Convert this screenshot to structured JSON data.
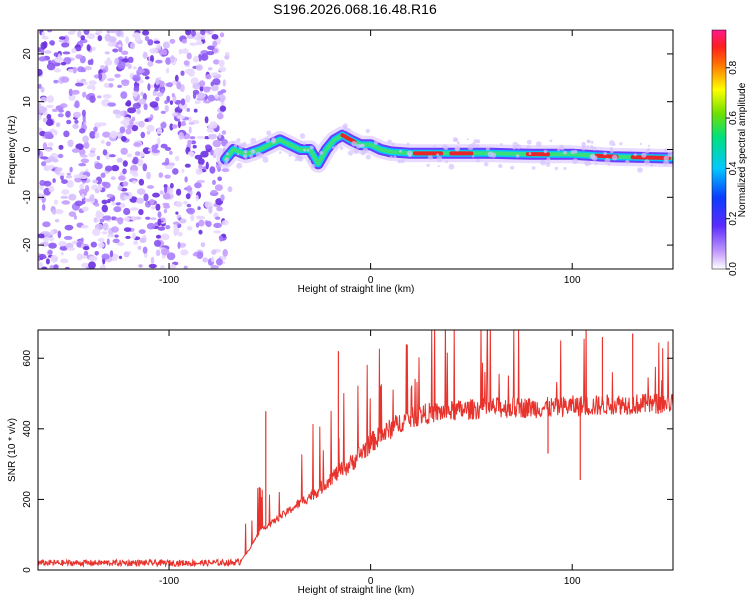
{
  "title": "S196.2026.068.16.48.R16",
  "chart_data": [
    {
      "type": "heatmap",
      "name": "spectrogram",
      "xlabel": "Height of straight line (km)",
      "ylabel": "Frequency (Hz)",
      "xlim": [
        -165,
        150
      ],
      "ylim": [
        -25,
        25
      ],
      "xticks": [
        -100,
        0,
        100
      ],
      "xtick_labels": [
        "-100",
        "0",
        "100"
      ],
      "yticks": [
        -20,
        -10,
        0,
        10,
        20
      ],
      "ytick_labels": [
        "-20",
        "-10",
        "0",
        "10",
        "20"
      ],
      "noise_region_x": [
        -165,
        -72
      ],
      "signal_track": {
        "x": [
          -72,
          -68,
          -62,
          -55,
          -50,
          -45,
          -40,
          -35,
          -30,
          -26,
          -22,
          -18,
          -14,
          -10,
          -5,
          0,
          5,
          10,
          20,
          40,
          60,
          80,
          100,
          120,
          150
        ],
        "y": [
          -2,
          0,
          -1,
          0,
          1,
          2,
          1,
          0,
          0,
          -3,
          0,
          2,
          3,
          2,
          1,
          1,
          0,
          -0.5,
          -0.8,
          -0.8,
          -0.8,
          -1,
          -1,
          -1.5,
          -1.8
        ]
      },
      "colorbar": {
        "label": "Normalized spectral amplitude",
        "range": [
          0,
          0.95
        ],
        "ticks": [
          0,
          0.2,
          0.4,
          0.6,
          0.8
        ],
        "tick_labels": [
          "0.0",
          "0.2",
          "0.4",
          "0.6",
          "0.8"
        ]
      }
    },
    {
      "type": "line",
      "name": "snr",
      "xlabel": "Height of straight line (km)",
      "ylabel": "SNR (10 * v/v)",
      "xlim": [
        -165,
        150
      ],
      "ylim": [
        0,
        680
      ],
      "xticks": [
        -100,
        0,
        100
      ],
      "xtick_labels": [
        "-100",
        "0",
        "100"
      ],
      "yticks": [
        0,
        200,
        400,
        600
      ],
      "ytick_labels": [
        "0",
        "200",
        "400",
        "600"
      ],
      "color": "#e8322c",
      "series": [
        {
          "name": "SNR",
          "x": [
            -165,
            -140,
            -110,
            -80,
            -65,
            -60,
            -55,
            -50,
            -45,
            -40,
            -35,
            -30,
            -25,
            -20,
            -15,
            -10,
            -5,
            0,
            5,
            10,
            15,
            20,
            25,
            30,
            40,
            50,
            60,
            70,
            80,
            90,
            100,
            110,
            120,
            130,
            140,
            150
          ],
          "y": [
            20,
            20,
            20,
            20,
            22,
            60,
            110,
            130,
            150,
            170,
            190,
            210,
            230,
            260,
            280,
            300,
            330,
            360,
            380,
            400,
            420,
            430,
            440,
            445,
            450,
            455,
            460,
            460,
            460,
            460,
            465,
            465,
            470,
            470,
            470,
            475
          ]
        }
      ],
      "spikes": [
        {
          "x": -52,
          "y": 450
        },
        {
          "x": -16,
          "y": 620
        },
        {
          "x": 88,
          "y": 330
        },
        {
          "x": 104,
          "y": 255
        },
        {
          "x": 115,
          "y": 660
        },
        {
          "x": 130,
          "y": 670
        }
      ]
    }
  ]
}
